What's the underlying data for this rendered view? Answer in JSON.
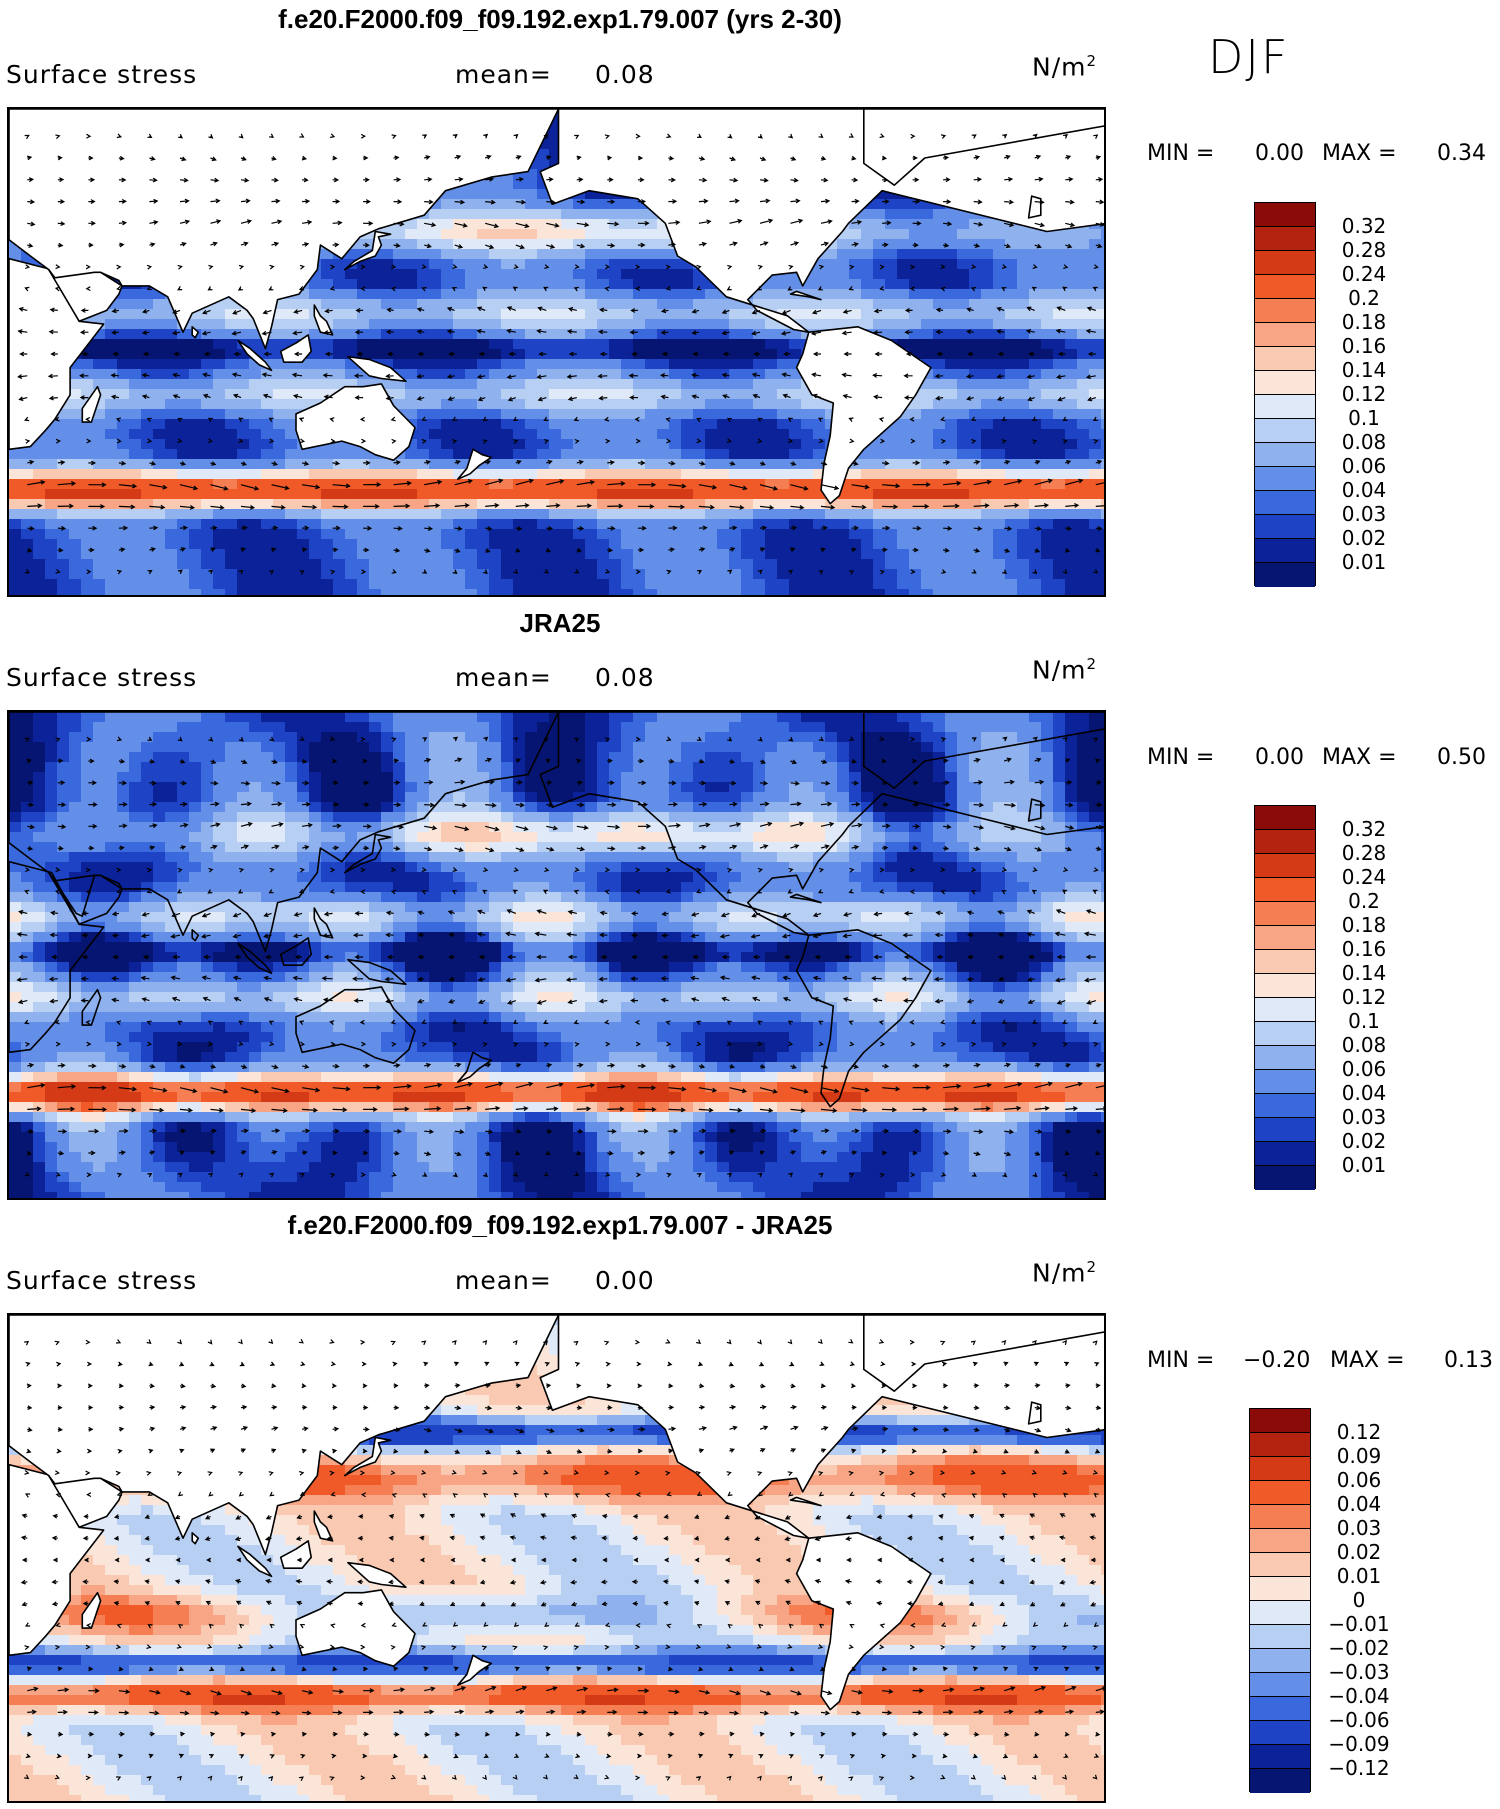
{
  "season": "DJF",
  "panels": [
    {
      "title": "f.e20.F2000.f09_f09.192.exp1.79.007 (yrs 2-30)",
      "variable": "Surface stress",
      "mean_label": "mean=",
      "mean_value": "0.08",
      "units": "N/m",
      "units_sup": "2",
      "min_label": "MIN =",
      "min_value": "0.00",
      "max_label": "MAX =",
      "max_value": "0.34",
      "colorbar": {
        "labels": [
          "0.32",
          "0.28",
          "0.24",
          "0.2",
          "0.18",
          "0.16",
          "0.14",
          "0.12",
          "0.1",
          "0.08",
          "0.06",
          "0.04",
          "0.03",
          "0.02",
          "0.01"
        ],
        "colors": [
          "#8b0b08",
          "#b42210",
          "#d53a17",
          "#ef5a28",
          "#f57f52",
          "#f7a585",
          "#f9c9b2",
          "#fbe5d8",
          "#dfe9f8",
          "#b8cff4",
          "#8fb2ee",
          "#648fe8",
          "#3a69de",
          "#1e43c4",
          "#0b2299",
          "#061572"
        ]
      },
      "map_style": "model"
    },
    {
      "title": "JRA25",
      "variable": "Surface stress",
      "mean_label": "mean=",
      "mean_value": "0.08",
      "units": "N/m",
      "units_sup": "2",
      "min_label": "MIN =",
      "min_value": "0.00",
      "max_label": "MAX =",
      "max_value": "0.50",
      "colorbar": {
        "labels": [
          "0.32",
          "0.28",
          "0.24",
          "0.2",
          "0.18",
          "0.16",
          "0.14",
          "0.12",
          "0.1",
          "0.08",
          "0.06",
          "0.04",
          "0.03",
          "0.02",
          "0.01"
        ],
        "colors": [
          "#8b0b08",
          "#b42210",
          "#d53a17",
          "#ef5a28",
          "#f57f52",
          "#f7a585",
          "#f9c9b2",
          "#fbe5d8",
          "#dfe9f8",
          "#b8cff4",
          "#8fb2ee",
          "#648fe8",
          "#3a69de",
          "#1e43c4",
          "#0b2299",
          "#061572"
        ]
      },
      "map_style": "obs"
    },
    {
      "title": "f.e20.F2000.f09_f09.192.exp1.79.007 - JRA25",
      "variable": "Surface stress",
      "mean_label": "mean=",
      "mean_value": "0.00",
      "units": "N/m",
      "units_sup": "2",
      "min_label": "MIN =",
      "min_value": "−0.20",
      "max_label": "MAX =",
      "max_value": "0.13",
      "colorbar": {
        "labels": [
          "0.12",
          "0.09",
          "0.06",
          "0.04",
          "0.03",
          "0.02",
          "0.01",
          "0",
          "−0.01",
          "−0.02",
          "−0.03",
          "−0.04",
          "−0.06",
          "−0.09",
          "−0.12"
        ],
        "colors": [
          "#8b0b08",
          "#b42210",
          "#d53a17",
          "#ef5a28",
          "#f57f52",
          "#f7a585",
          "#f9c9b2",
          "#fbe5d8",
          "#dfe9f8",
          "#b8cff4",
          "#8fb2ee",
          "#648fe8",
          "#3a69de",
          "#1e43c4",
          "#0b2299",
          "#061572"
        ]
      },
      "map_style": "diff"
    }
  ]
}
